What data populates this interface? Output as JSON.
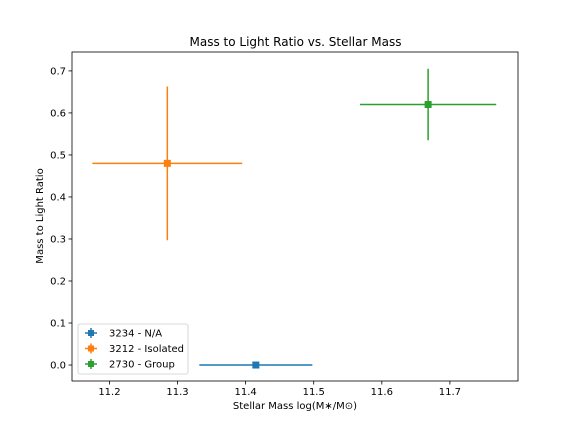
{
  "chart_data": {
    "type": "scatter",
    "title": "Mass to Light Ratio vs. Stellar Mass",
    "xlabel": "Stellar Mass log(M∗/M⊙)",
    "ylabel": "Mass to Light Ratio",
    "xlim": [
      11.145,
      11.8
    ],
    "ylim": [
      -0.038,
      0.745
    ],
    "xticks": [
      11.2,
      11.3,
      11.4,
      11.5,
      11.6,
      11.7
    ],
    "yticks": [
      0.0,
      0.1,
      0.2,
      0.3,
      0.4,
      0.5,
      0.6,
      0.7
    ],
    "grid": false,
    "legend_position": "lower-left",
    "series": [
      {
        "name": "3234 - N/A",
        "color": "#1f77b4",
        "x": 11.415,
        "y": 0.0,
        "xerr": 0.083,
        "yerr": 0.0
      },
      {
        "name": "3212 - Isolated",
        "color": "#ff7f0e",
        "x": 11.285,
        "y": 0.48,
        "xerr": 0.11,
        "yerr": 0.183
      },
      {
        "name": "2730 - Group",
        "color": "#2ca02c",
        "x": 11.668,
        "y": 0.62,
        "xerr": 0.1,
        "yerr": 0.085
      }
    ]
  }
}
